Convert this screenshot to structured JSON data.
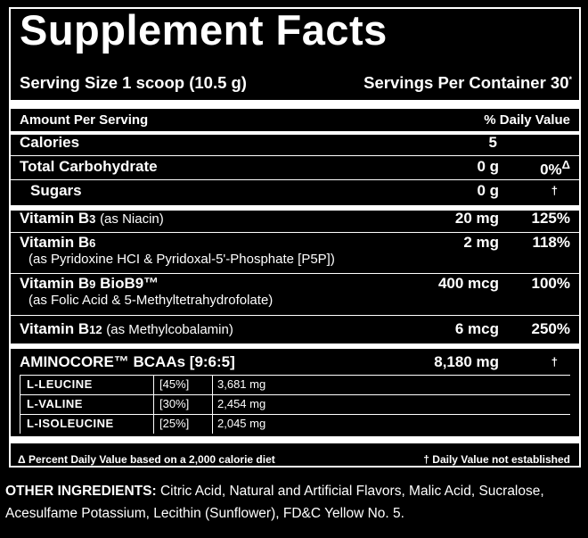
{
  "panel": {
    "title": "Supplement Facts",
    "serving_size": "Serving Size 1 scoop (10.5 g)",
    "servings_per_container": "Servings Per Container 30",
    "servings_mark": "*",
    "amount_header": "Amount Per Serving",
    "dv_header": "% Daily Value"
  },
  "rows": {
    "calories": {
      "label": "Calories",
      "amount": "5",
      "dv": ""
    },
    "carbs": {
      "label": "Total Carbohydrate",
      "amount": "0 g",
      "dv": "0%",
      "dv_mark": "Δ"
    },
    "sugars": {
      "label": "Sugars",
      "amount": "0 g",
      "dv": "†"
    },
    "b3": {
      "label": "Vitamin B",
      "label_sub_num": "3",
      "detail": "(as Niacin)",
      "amount": "20 mg",
      "dv": "125%"
    },
    "b6": {
      "label": "Vitamin B",
      "label_sub_num": "6",
      "detail": "(as Pyridoxine HCI & Pyridoxal-5'-Phosphate [P5P])",
      "amount": "2 mg",
      "dv": "118%"
    },
    "b9": {
      "label": "Vitamin B",
      "label_sub_num": "9",
      "label_extra": "BioB9™",
      "detail": "(as Folic Acid & 5-Methyltetrahydrofolate)",
      "amount": "400 mcg",
      "dv": "100%"
    },
    "b12": {
      "label": "Vitamin B",
      "label_sub_num": "12",
      "detail": "(as Methylcobalamin)",
      "amount": "6 mcg",
      "dv": "250%"
    },
    "bcaa": {
      "label": "AMINOCORE™ BCAAs [9:6:5]",
      "amount": "8,180 mg",
      "dv": "†"
    }
  },
  "aminos": [
    {
      "name": "L-LEUCINE",
      "pct": "[45%]",
      "mg": "3,681 mg"
    },
    {
      "name": "L-VALINE",
      "pct": "[30%]",
      "mg": "2,454 mg"
    },
    {
      "name": "L-ISOLEUCINE",
      "pct": "[25%]",
      "mg": "2,045 mg"
    }
  ],
  "footnotes": {
    "left": "Δ Percent Daily Value based on a 2,000 calorie diet",
    "right": "† Daily Value not established"
  },
  "other_ingredients": {
    "label": "OTHER INGREDIENTS:",
    "text": "Citric Acid, Natural and Artificial Flavors, Malic Acid, Sucralose, Acesulfame Potassium, Lecithin (Sunflower), FD&C Yellow No. 5."
  }
}
